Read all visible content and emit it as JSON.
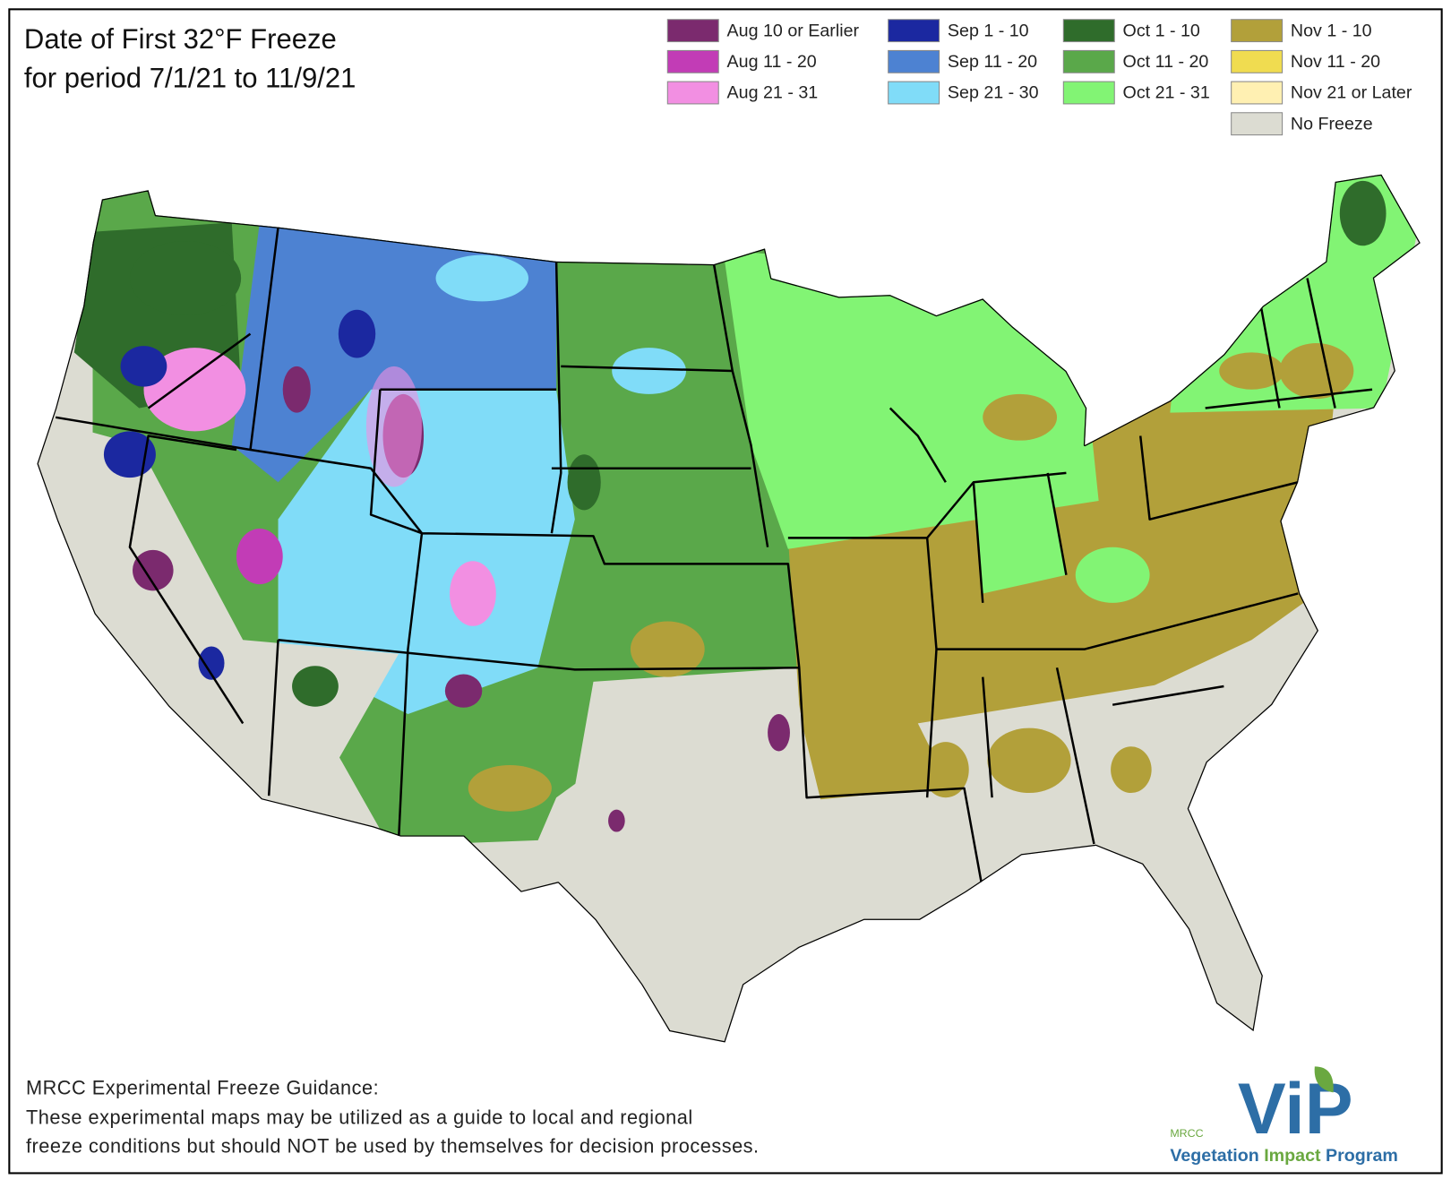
{
  "title": [
    "Date of First 32°F Freeze",
    "for period 7/1/21 to 11/9/21"
  ],
  "legend": [
    {
      "label": "Aug 10 or Earlier",
      "color": "#7b2a6e"
    },
    {
      "label": "Aug 11 - 20",
      "color": "#c23cb6"
    },
    {
      "label": "Aug 21 - 31",
      "color": "#f28fe2"
    },
    {
      "label": "Sep 1 - 10",
      "color": "#1b28a0"
    },
    {
      "label": "Sep 11 - 20",
      "color": "#4d82d2"
    },
    {
      "label": "Sep 21 - 30",
      "color": "#80dcf8"
    },
    {
      "label": "Oct 1 - 10",
      "color": "#2f6c2b"
    },
    {
      "label": "Oct 11 - 20",
      "color": "#5aa84a"
    },
    {
      "label": "Oct 21 - 31",
      "color": "#82f474"
    },
    {
      "label": "Nov 1 - 10",
      "color": "#b2a03a"
    },
    {
      "label": "Nov 11 - 20",
      "color": "#f0dc50"
    },
    {
      "label": "Nov 21 or Later",
      "color": "#fff0b2"
    },
    {
      "label": "No Freeze",
      "color": "#dcdcd2"
    }
  ],
  "footer": [
    "MRCC Experimental Freeze Guidance:",
    "These experimental maps may be utilized as a guide to local and regional",
    "freeze conditions but should NOT be used by themselves for decision processes."
  ],
  "logo": {
    "org": "MRCC",
    "mark": "ViP",
    "name": [
      "Vegetation",
      "Impact",
      "Program"
    ]
  }
}
